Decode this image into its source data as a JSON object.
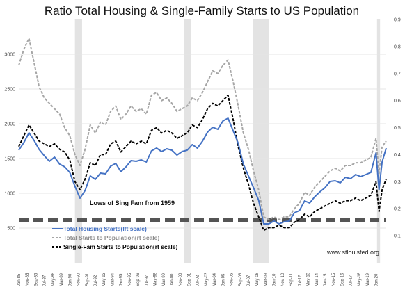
{
  "chart_data": {
    "type": "line",
    "title": "Ratio Total Housing & Single-Family Starts to US Population",
    "left_axis": {
      "ylim": [
        0,
        3500
      ],
      "ticks": [
        500,
        1000,
        1500,
        2000,
        2500,
        3000
      ]
    },
    "right_axis": {
      "ylim": [
        0,
        0.9
      ],
      "ticks": [
        0.1,
        0.2,
        0.3,
        0.4,
        0.5,
        0.6,
        0.7,
        0.8,
        0.9
      ]
    },
    "x_range": [
      1985.0,
      2021.0
    ],
    "x_tick_labels": [
      "Jan-85",
      "Nov-85",
      "Sep-86",
      "Jul-87",
      "May-88",
      "Mar-89",
      "Jan-90",
      "Nov-90",
      "Sep-91",
      "Jul-92",
      "May-93",
      "Mar-94",
      "Jan-95",
      "Nov-95",
      "Sep-96",
      "Jul-97",
      "May-98",
      "Mar-99",
      "Jan-00",
      "Nov-00",
      "Sep-01",
      "Jul-02",
      "May-03",
      "Mar-04",
      "Jan-05",
      "Nov-05",
      "Sep-06",
      "Jul-07",
      "May-08",
      "Mar-09",
      "Jan-10",
      "Nov-10",
      "Sep-11",
      "Jul-12",
      "May-13",
      "Mar-14",
      "Jan-15",
      "Nov-15",
      "Sep-16",
      "Jul-17",
      "May-18",
      "Mar-19",
      "Jan-20"
    ],
    "recessions": [
      [
        1990.5,
        1991.2
      ],
      [
        2001.2,
        2001.9
      ],
      [
        2007.95,
        2009.5
      ],
      [
        2020.1,
        2020.4
      ]
    ],
    "reference_line": {
      "axis": "left",
      "value": 620,
      "style": "dashed",
      "color": "#555555"
    },
    "annotation": "Lows of Sing Fam from 1959",
    "source": "www.stlouisfed.org",
    "series": [
      {
        "name": "Total Housing Starts(lft scale)",
        "axis": "left",
        "color": "#4472c4",
        "style": "solid",
        "x": [
          1985.0,
          1985.5,
          1986.0,
          1986.5,
          1987.0,
          1987.5,
          1988.0,
          1988.5,
          1989.0,
          1989.5,
          1990.0,
          1990.5,
          1991.0,
          1991.5,
          1992.0,
          1992.5,
          1993.0,
          1993.5,
          1994.0,
          1994.5,
          1995.0,
          1995.5,
          1996.0,
          1996.5,
          1997.0,
          1997.5,
          1998.0,
          1998.5,
          1999.0,
          1999.5,
          2000.0,
          2000.5,
          2001.0,
          2001.5,
          2002.0,
          2002.5,
          2003.0,
          2003.5,
          2004.0,
          2004.5,
          2005.0,
          2005.5,
          2006.0,
          2006.5,
          2007.0,
          2007.5,
          2008.0,
          2008.5,
          2009.0,
          2009.5,
          2010.0,
          2010.5,
          2011.0,
          2011.5,
          2012.0,
          2012.5,
          2013.0,
          2013.5,
          2014.0,
          2014.5,
          2015.0,
          2015.5,
          2016.0,
          2016.5,
          2017.0,
          2017.5,
          2018.0,
          2018.5,
          2019.0,
          2019.5,
          2020.0,
          2020.3,
          2020.6,
          2021.0
        ],
        "values": [
          1620,
          1730,
          1870,
          1760,
          1630,
          1540,
          1460,
          1520,
          1420,
          1380,
          1300,
          1100,
          930,
          1040,
          1250,
          1200,
          1290,
          1280,
          1390,
          1430,
          1310,
          1380,
          1470,
          1460,
          1480,
          1450,
          1610,
          1650,
          1600,
          1640,
          1620,
          1550,
          1600,
          1620,
          1700,
          1650,
          1750,
          1880,
          1950,
          1920,
          2040,
          2080,
          1900,
          1720,
          1420,
          1250,
          1080,
          900,
          560,
          560,
          600,
          560,
          590,
          600,
          720,
          750,
          890,
          860,
          950,
          1020,
          1080,
          1170,
          1180,
          1150,
          1230,
          1210,
          1270,
          1240,
          1270,
          1300,
          1580,
          1050,
          1450,
          1650
        ]
      },
      {
        "name": "Total Starts to Population(rt scale)",
        "axis": "right",
        "color": "#a6a6a6",
        "style": "dashed",
        "x": [
          1985.0,
          1985.5,
          1986.0,
          1986.5,
          1987.0,
          1987.5,
          1988.0,
          1988.5,
          1989.0,
          1989.5,
          1990.0,
          1990.5,
          1991.0,
          1991.5,
          1992.0,
          1992.5,
          1993.0,
          1993.5,
          1994.0,
          1994.5,
          1995.0,
          1995.5,
          1996.0,
          1996.5,
          1997.0,
          1997.5,
          1998.0,
          1998.5,
          1999.0,
          1999.5,
          2000.0,
          2000.5,
          2001.0,
          2001.5,
          2002.0,
          2002.5,
          2003.0,
          2003.5,
          2004.0,
          2004.5,
          2005.0,
          2005.5,
          2006.0,
          2006.5,
          2007.0,
          2007.5,
          2008.0,
          2008.5,
          2009.0,
          2009.5,
          2010.0,
          2010.5,
          2011.0,
          2011.5,
          2012.0,
          2012.5,
          2013.0,
          2013.5,
          2014.0,
          2014.5,
          2015.0,
          2015.5,
          2016.0,
          2016.5,
          2017.0,
          2017.5,
          2018.0,
          2018.5,
          2019.0,
          2019.5,
          2020.0,
          2020.3,
          2020.6,
          2021.0
        ],
        "values": [
          0.73,
          0.79,
          0.83,
          0.74,
          0.65,
          0.61,
          0.59,
          0.57,
          0.55,
          0.5,
          0.47,
          0.4,
          0.36,
          0.42,
          0.51,
          0.48,
          0.52,
          0.51,
          0.56,
          0.58,
          0.53,
          0.55,
          0.58,
          0.56,
          0.57,
          0.55,
          0.62,
          0.63,
          0.6,
          0.61,
          0.59,
          0.56,
          0.57,
          0.58,
          0.61,
          0.6,
          0.63,
          0.67,
          0.71,
          0.7,
          0.73,
          0.75,
          0.67,
          0.58,
          0.48,
          0.42,
          0.34,
          0.27,
          0.17,
          0.16,
          0.17,
          0.16,
          0.17,
          0.17,
          0.2,
          0.22,
          0.26,
          0.25,
          0.28,
          0.3,
          0.32,
          0.34,
          0.35,
          0.34,
          0.36,
          0.36,
          0.37,
          0.37,
          0.38,
          0.39,
          0.46,
          0.33,
          0.43,
          0.45
        ]
      },
      {
        "name": "Single-Fam Starts to Population(rt scale)",
        "axis": "right",
        "color": "#000000",
        "style": "dashed",
        "x": [
          1985.0,
          1985.5,
          1986.0,
          1986.5,
          1987.0,
          1987.5,
          1988.0,
          1988.5,
          1989.0,
          1989.5,
          1990.0,
          1990.5,
          1991.0,
          1991.5,
          1992.0,
          1992.5,
          1993.0,
          1993.5,
          1994.0,
          1994.5,
          1995.0,
          1995.5,
          1996.0,
          1996.5,
          1997.0,
          1997.5,
          1998.0,
          1998.5,
          1999.0,
          1999.5,
          2000.0,
          2000.5,
          2001.0,
          2001.5,
          2002.0,
          2002.5,
          2003.0,
          2003.5,
          2004.0,
          2004.5,
          2005.0,
          2005.5,
          2006.0,
          2006.5,
          2007.0,
          2007.5,
          2008.0,
          2008.5,
          2009.0,
          2009.5,
          2010.0,
          2010.5,
          2011.0,
          2011.5,
          2012.0,
          2012.5,
          2013.0,
          2013.5,
          2014.0,
          2014.5,
          2015.0,
          2015.5,
          2016.0,
          2016.5,
          2017.0,
          2017.5,
          2018.0,
          2018.5,
          2019.0,
          2019.5,
          2020.0,
          2020.3,
          2020.6,
          2021.0
        ],
        "values": [
          0.43,
          0.47,
          0.51,
          0.48,
          0.45,
          0.44,
          0.43,
          0.44,
          0.42,
          0.41,
          0.38,
          0.3,
          0.27,
          0.31,
          0.37,
          0.36,
          0.4,
          0.4,
          0.44,
          0.45,
          0.41,
          0.43,
          0.45,
          0.44,
          0.45,
          0.44,
          0.49,
          0.5,
          0.48,
          0.49,
          0.48,
          0.46,
          0.47,
          0.48,
          0.51,
          0.5,
          0.53,
          0.57,
          0.59,
          0.58,
          0.6,
          0.62,
          0.53,
          0.43,
          0.35,
          0.29,
          0.22,
          0.17,
          0.12,
          0.13,
          0.13,
          0.14,
          0.13,
          0.13,
          0.15,
          0.16,
          0.18,
          0.17,
          0.19,
          0.2,
          0.21,
          0.22,
          0.23,
          0.22,
          0.23,
          0.23,
          0.24,
          0.23,
          0.24,
          0.25,
          0.3,
          0.19,
          0.27,
          0.31
        ]
      }
    ]
  }
}
